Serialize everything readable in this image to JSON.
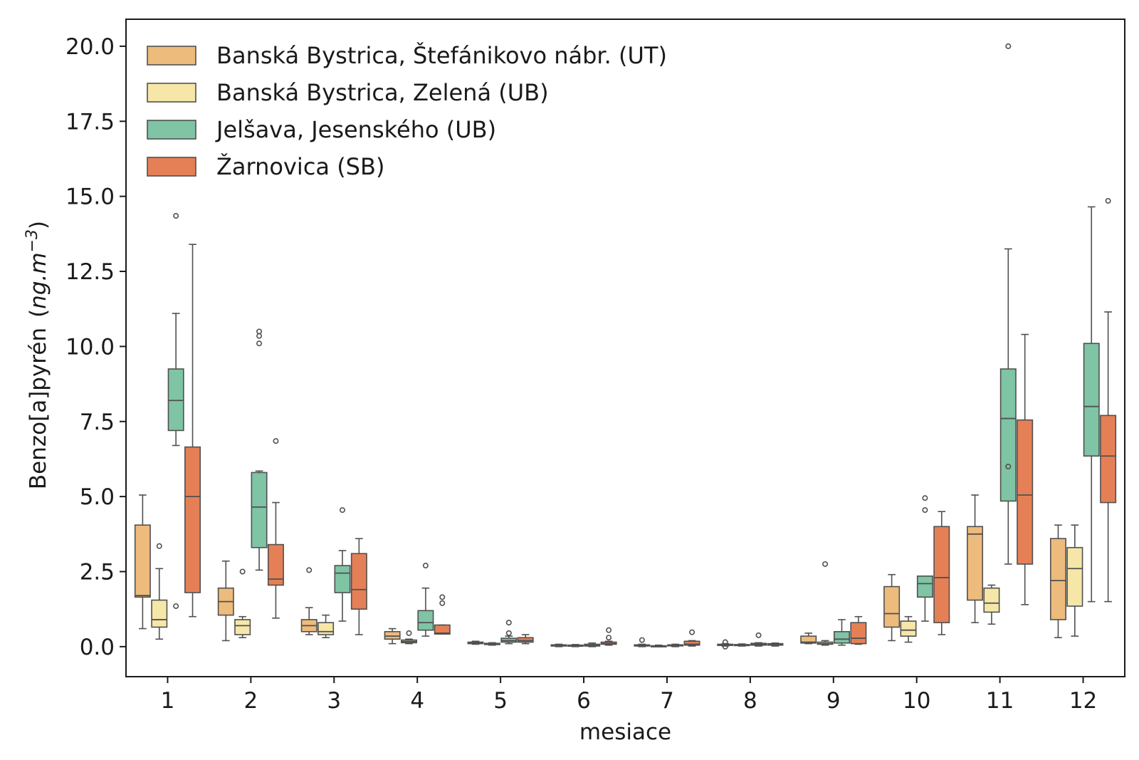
{
  "chart_data": {
    "type": "boxplot",
    "title": "",
    "xlabel": "mesiace",
    "ylabel": "Benzo[a]pyrén",
    "ylabel_unit_prefix": "ng.m",
    "ylabel_unit_exp": "−3",
    "ylim": [
      -1.0,
      20.9
    ],
    "yticks": [
      "0.0",
      "2.5",
      "5.0",
      "7.5",
      "10.0",
      "12.5",
      "15.0",
      "17.5",
      "20.0"
    ],
    "ytick_values": [
      0,
      2.5,
      5,
      7.5,
      10,
      12.5,
      15,
      17.5,
      20
    ],
    "categories": [
      "1",
      "2",
      "3",
      "4",
      "5",
      "6",
      "7",
      "8",
      "9",
      "10",
      "11",
      "12"
    ],
    "legend_position": "top-left",
    "series": [
      {
        "name": "Banská Bystrica, Štefánikovo nábr. (UT)",
        "color": "#edbb7c",
        "boxes": [
          {
            "lo": 0.6,
            "q1": 1.65,
            "med": 1.7,
            "q3": 4.05,
            "hi": 5.05,
            "out": []
          },
          {
            "lo": 0.2,
            "q1": 1.05,
            "med": 1.5,
            "q3": 1.95,
            "hi": 2.85,
            "out": []
          },
          {
            "lo": 0.4,
            "q1": 0.5,
            "med": 0.7,
            "q3": 0.9,
            "hi": 1.3,
            "out": [
              2.55
            ]
          },
          {
            "lo": 0.1,
            "q1": 0.25,
            "med": 0.35,
            "q3": 0.5,
            "hi": 0.6,
            "out": []
          },
          {
            "lo": 0.08,
            "q1": 0.1,
            "med": 0.12,
            "q3": 0.15,
            "hi": 0.18,
            "out": []
          },
          {
            "lo": 0.0,
            "q1": 0.02,
            "med": 0.04,
            "q3": 0.06,
            "hi": 0.08,
            "out": []
          },
          {
            "lo": 0.0,
            "q1": 0.02,
            "med": 0.04,
            "q3": 0.06,
            "hi": 0.08,
            "out": [
              0.22
            ]
          },
          {
            "lo": 0.02,
            "q1": 0.04,
            "med": 0.06,
            "q3": 0.08,
            "hi": 0.1,
            "out": [
              0.0,
              0.15
            ]
          },
          {
            "lo": 0.1,
            "q1": 0.12,
            "med": 0.15,
            "q3": 0.35,
            "hi": 0.45,
            "out": []
          },
          {
            "lo": 0.2,
            "q1": 0.65,
            "med": 1.1,
            "q3": 2.0,
            "hi": 2.4,
            "out": []
          },
          {
            "lo": 0.8,
            "q1": 1.55,
            "med": 3.75,
            "q3": 4.0,
            "hi": 5.05,
            "out": []
          },
          {
            "lo": 0.3,
            "q1": 0.9,
            "med": 2.2,
            "q3": 3.6,
            "hi": 4.05,
            "out": []
          }
        ]
      },
      {
        "name": "Banská Bystrica, Zelená (UB)",
        "color": "#f6e7a9",
        "boxes": [
          {
            "lo": 0.25,
            "q1": 0.65,
            "med": 0.9,
            "q3": 1.55,
            "hi": 2.6,
            "out": [
              3.35
            ]
          },
          {
            "lo": 0.3,
            "q1": 0.4,
            "med": 0.7,
            "q3": 0.9,
            "hi": 1.0,
            "out": [
              2.5
            ]
          },
          {
            "lo": 0.3,
            "q1": 0.4,
            "med": 0.5,
            "q3": 0.8,
            "hi": 1.05,
            "out": []
          },
          {
            "lo": 0.1,
            "q1": 0.13,
            "med": 0.17,
            "q3": 0.22,
            "hi": 0.25,
            "out": [
              0.45
            ]
          },
          {
            "lo": 0.05,
            "q1": 0.07,
            "med": 0.09,
            "q3": 0.11,
            "hi": 0.13,
            "out": []
          },
          {
            "lo": 0.0,
            "q1": 0.02,
            "med": 0.03,
            "q3": 0.05,
            "hi": 0.07,
            "out": []
          },
          {
            "lo": 0.0,
            "q1": 0.01,
            "med": 0.02,
            "q3": 0.03,
            "hi": 0.05,
            "out": []
          },
          {
            "lo": 0.02,
            "q1": 0.04,
            "med": 0.05,
            "q3": 0.07,
            "hi": 0.09,
            "out": []
          },
          {
            "lo": 0.05,
            "q1": 0.08,
            "med": 0.1,
            "q3": 0.15,
            "hi": 0.2,
            "out": [
              2.75
            ]
          },
          {
            "lo": 0.15,
            "q1": 0.35,
            "med": 0.55,
            "q3": 0.85,
            "hi": 1.0,
            "out": []
          },
          {
            "lo": 0.75,
            "q1": 1.15,
            "med": 1.45,
            "q3": 1.95,
            "hi": 2.05,
            "out": []
          },
          {
            "lo": 0.35,
            "q1": 1.35,
            "med": 2.6,
            "q3": 3.3,
            "hi": 4.05,
            "out": []
          }
        ]
      },
      {
        "name": "Jelšava, Jesenského (UB)",
        "color": "#7fc4a4",
        "boxes": [
          {
            "lo": 6.7,
            "q1": 7.2,
            "med": 8.2,
            "q3": 9.25,
            "hi": 11.1,
            "out": [
              14.35,
              1.35
            ]
          },
          {
            "lo": 2.55,
            "q1": 3.3,
            "med": 4.65,
            "q3": 5.8,
            "hi": 5.85,
            "out": [
              10.5,
              10.35,
              10.1
            ]
          },
          {
            "lo": 0.85,
            "q1": 1.8,
            "med": 2.45,
            "q3": 2.7,
            "hi": 3.2,
            "out": [
              4.55
            ]
          },
          {
            "lo": 0.35,
            "q1": 0.55,
            "med": 0.8,
            "q3": 1.2,
            "hi": 1.95,
            "out": [
              2.7
            ]
          },
          {
            "lo": 0.1,
            "q1": 0.15,
            "med": 0.2,
            "q3": 0.28,
            "hi": 0.35,
            "out": [
              0.8,
              0.45
            ]
          },
          {
            "lo": 0.0,
            "q1": 0.02,
            "med": 0.04,
            "q3": 0.08,
            "hi": 0.12,
            "out": []
          },
          {
            "lo": 0.0,
            "q1": 0.03,
            "med": 0.04,
            "q3": 0.06,
            "hi": 0.08,
            "out": []
          },
          {
            "lo": 0.02,
            "q1": 0.05,
            "med": 0.08,
            "q3": 0.11,
            "hi": 0.13,
            "out": [
              0.38
            ]
          },
          {
            "lo": 0.05,
            "q1": 0.12,
            "med": 0.25,
            "q3": 0.5,
            "hi": 0.9,
            "out": []
          },
          {
            "lo": 0.85,
            "q1": 1.65,
            "med": 2.1,
            "q3": 2.35,
            "hi": 2.35,
            "out": [
              4.95,
              4.55
            ]
          },
          {
            "lo": 2.75,
            "q1": 4.85,
            "med": 7.6,
            "q3": 9.25,
            "hi": 13.25,
            "out": [
              20.0,
              6.0
            ]
          },
          {
            "lo": 1.5,
            "q1": 6.35,
            "med": 8.0,
            "q3": 10.1,
            "hi": 14.65,
            "out": []
          }
        ]
      },
      {
        "name": "Žarnovica (SB)",
        "color": "#e58056",
        "boxes": [
          {
            "lo": 1.0,
            "q1": 1.8,
            "med": 5.0,
            "q3": 6.65,
            "hi": 13.4,
            "out": []
          },
          {
            "lo": 0.95,
            "q1": 2.05,
            "med": 2.25,
            "q3": 3.4,
            "hi": 4.8,
            "out": [
              6.85
            ]
          },
          {
            "lo": 0.4,
            "q1": 1.25,
            "med": 1.9,
            "q3": 3.1,
            "hi": 3.6,
            "out": []
          },
          {
            "lo": 0.42,
            "q1": 0.42,
            "med": 0.45,
            "q3": 0.72,
            "hi": 0.72,
            "out": [
              1.65,
              1.45
            ]
          },
          {
            "lo": 0.1,
            "q1": 0.15,
            "med": 0.2,
            "q3": 0.3,
            "hi": 0.4,
            "out": []
          },
          {
            "lo": 0.05,
            "q1": 0.08,
            "med": 0.1,
            "q3": 0.15,
            "hi": 0.18,
            "out": [
              0.55,
              0.3
            ]
          },
          {
            "lo": 0.02,
            "q1": 0.05,
            "med": 0.08,
            "q3": 0.18,
            "hi": 0.2,
            "out": [
              0.48
            ]
          },
          {
            "lo": 0.02,
            "q1": 0.05,
            "med": 0.07,
            "q3": 0.1,
            "hi": 0.12,
            "out": []
          },
          {
            "lo": 0.08,
            "q1": 0.1,
            "med": 0.28,
            "q3": 0.8,
            "hi": 1.0,
            "out": []
          },
          {
            "lo": 0.4,
            "q1": 0.8,
            "med": 2.3,
            "q3": 4.0,
            "hi": 4.5,
            "out": []
          },
          {
            "lo": 1.4,
            "q1": 2.75,
            "med": 5.05,
            "q3": 7.55,
            "hi": 10.4,
            "out": []
          },
          {
            "lo": 1.5,
            "q1": 4.8,
            "med": 6.35,
            "q3": 7.7,
            "hi": 11.15,
            "out": [
              14.85
            ]
          }
        ]
      }
    ]
  }
}
